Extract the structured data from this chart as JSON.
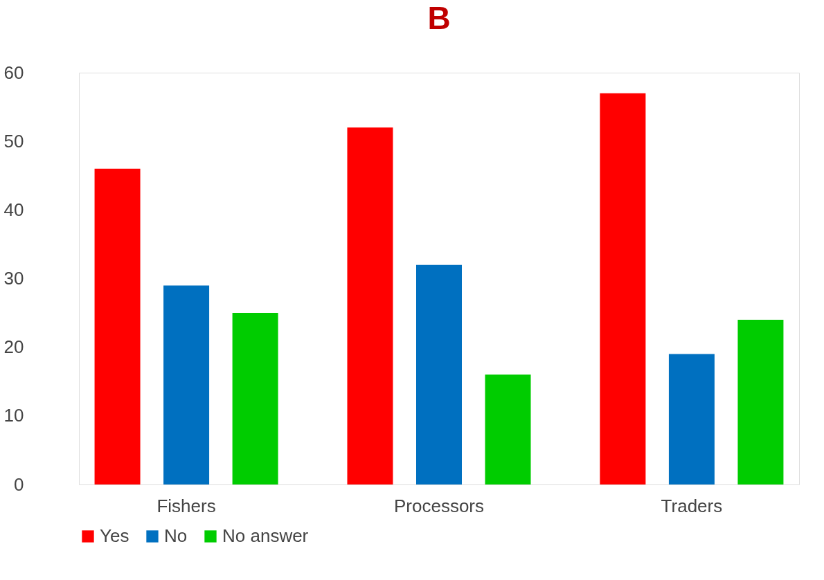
{
  "chart_data": {
    "type": "bar",
    "title": "B",
    "categories": [
      "Fishers",
      "Processors",
      "Traders"
    ],
    "series": [
      {
        "name": "Yes",
        "color": "#ff0000",
        "values": [
          46,
          52,
          57
        ]
      },
      {
        "name": "No",
        "color": "#0070c0",
        "values": [
          29,
          32,
          19
        ]
      },
      {
        "name": "No answer",
        "color": "#00cc00",
        "values": [
          25,
          16,
          24
        ]
      }
    ],
    "ylim": [
      0,
      60
    ],
    "yticks": [
      0,
      10,
      20,
      30,
      40,
      50,
      60
    ],
    "grid": false,
    "legend": "bottom"
  }
}
